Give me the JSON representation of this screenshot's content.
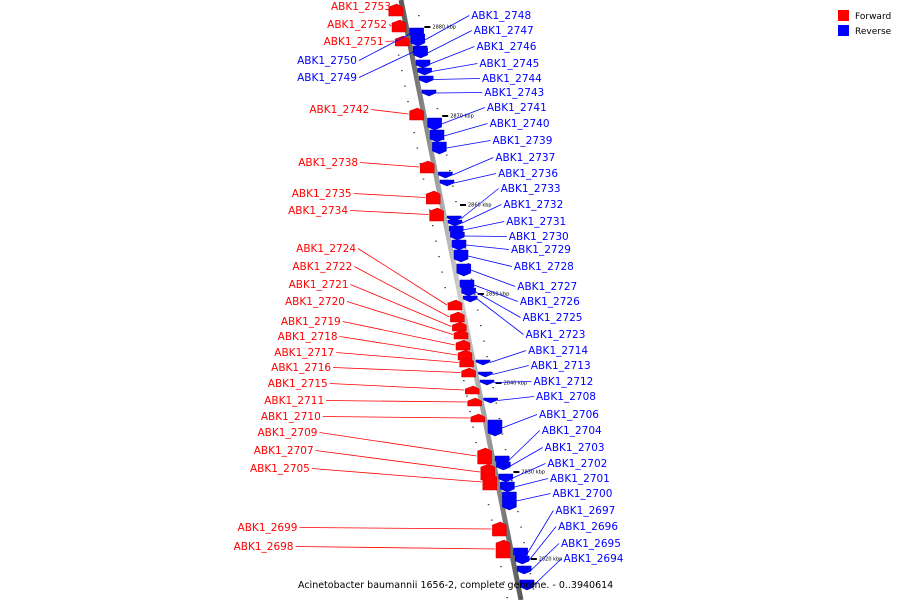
{
  "colors": {
    "forward": "#ff0000",
    "reverse": "#0000ff",
    "backbone": "#8c8c8c"
  },
  "legend": {
    "forward": "Forward",
    "reverse": "Reverse"
  },
  "caption": "Acinetobacter baumannii 1656-2, complete genome. - 0..3940614",
  "kbp_marks": [
    "2880 kbp",
    "2870 kbp",
    "2860 kbp",
    "2850 kbp",
    "2840 kbp",
    "2830 kbp",
    "2820 kbp"
  ],
  "genes_forward": [
    "ABK1_2753",
    "ABK1_2752",
    "ABK1_2751",
    "ABK1_2742",
    "ABK1_2738",
    "ABK1_2735",
    "ABK1_2734",
    "ABK1_2724",
    "ABK1_2722",
    "ABK1_2721",
    "ABK1_2720",
    "ABK1_2719",
    "ABK1_2718",
    "ABK1_2717",
    "ABK1_2716",
    "ABK1_2715",
    "ABK1_2711",
    "ABK1_2710",
    "ABK1_2709",
    "ABK1_2707",
    "ABK1_2705",
    "ABK1_2699",
    "ABK1_2698"
  ],
  "genes_reverse": [
    "ABK1_2750",
    "ABK1_2749",
    "ABK1_2748",
    "ABK1_2747",
    "ABK1_2746",
    "ABK1_2745",
    "ABK1_2744",
    "ABK1_2743",
    "ABK1_2741",
    "ABK1_2740",
    "ABK1_2739",
    "ABK1_2737",
    "ABK1_2736",
    "ABK1_2733",
    "ABK1_2732",
    "ABK1_2731",
    "ABK1_2730",
    "ABK1_2729",
    "ABK1_2728",
    "ABK1_2727",
    "ABK1_2726",
    "ABK1_2725",
    "ABK1_2723",
    "ABK1_2714",
    "ABK1_2713",
    "ABK1_2712",
    "ABK1_2708",
    "ABK1_2706",
    "ABK1_2704",
    "ABK1_2703",
    "ABK1_2702",
    "ABK1_2701",
    "ABK1_2700",
    "ABK1_2697",
    "ABK1_2696",
    "ABK1_2695",
    "ABK1_2694"
  ]
}
